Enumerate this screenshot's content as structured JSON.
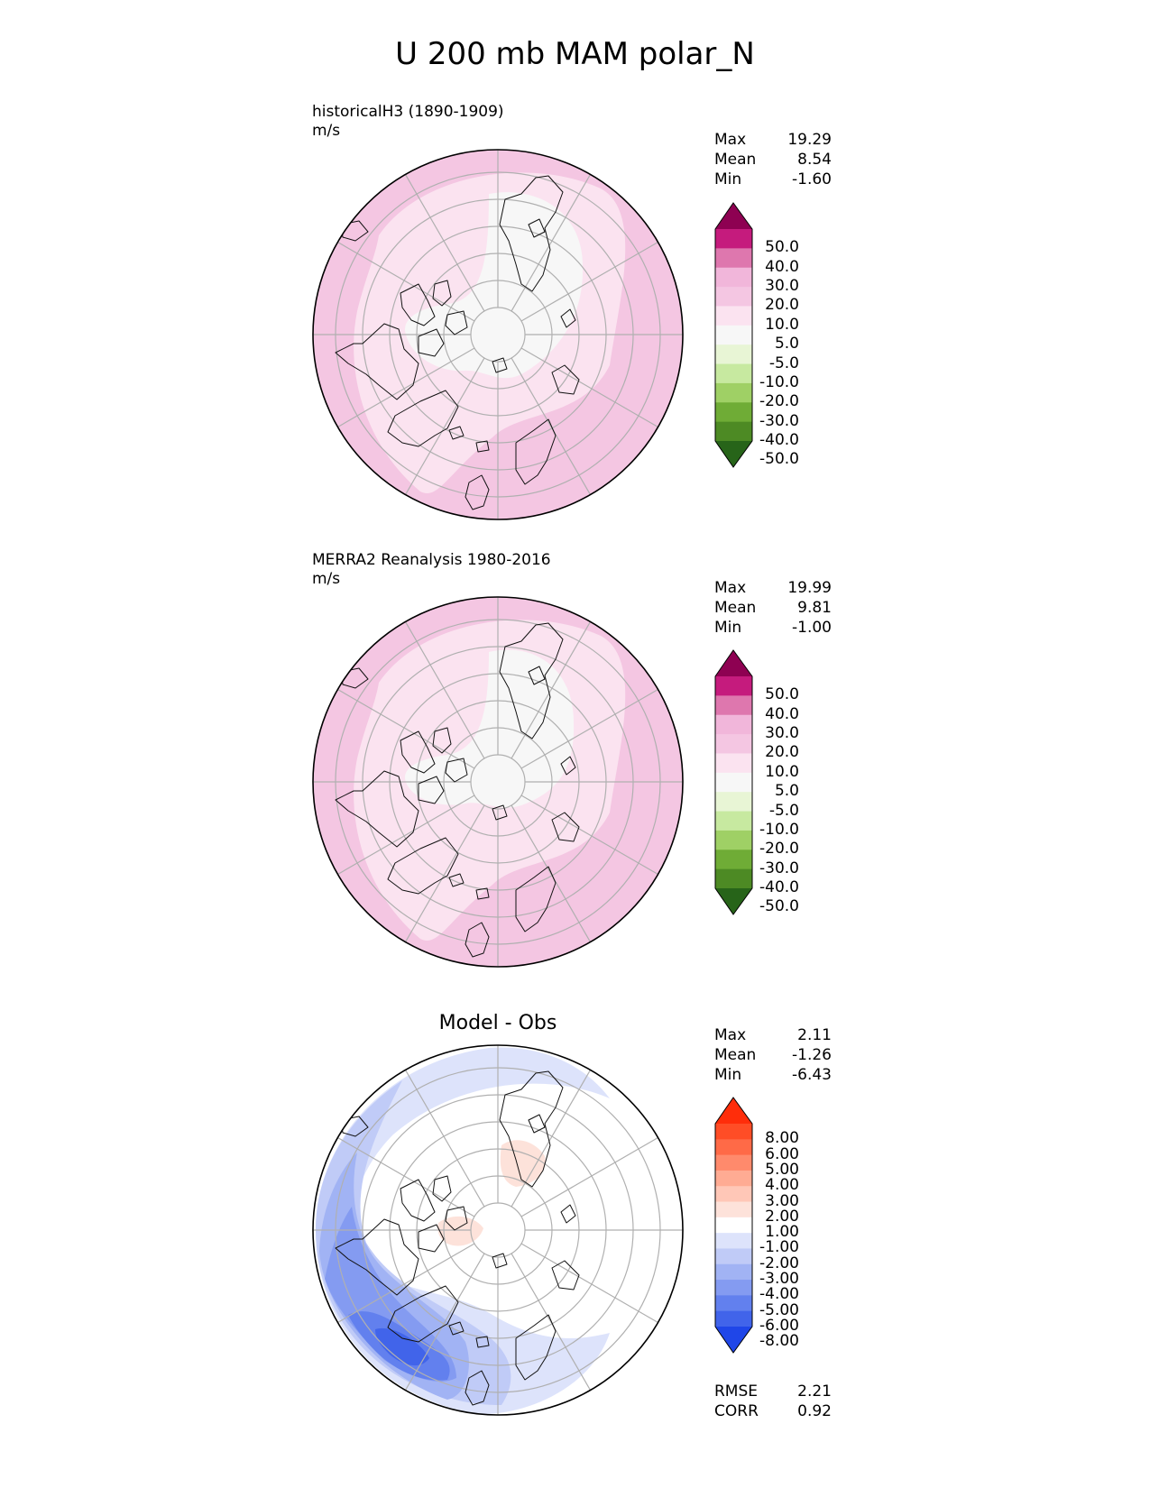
{
  "title": "U 200 mb MAM polar_N",
  "panels": [
    {
      "id": "model",
      "title_line1": "historicalH3 (1890-1909)",
      "title_line2": "m/s",
      "stats": [
        {
          "label": "Max",
          "value": "19.29"
        },
        {
          "label": "Mean",
          "value": "8.54"
        },
        {
          "label": "Min",
          "value": "-1.60"
        }
      ],
      "colorbar_labels": [
        "50.0",
        "40.0",
        "30.0",
        "20.0",
        "10.0",
        "5.0",
        "-5.0",
        "-10.0",
        "-20.0",
        "-30.0",
        "-40.0",
        "-50.0"
      ],
      "colors": [
        "#8e0152",
        "#c51b7d",
        "#de77ae",
        "#f1b6da",
        "#f4c6e2",
        "#fbe3f0",
        "#f7f7f7",
        "#e8f5d5",
        "#c7e9a0",
        "#9fd065",
        "#6fac36",
        "#4d8a24",
        "#276419"
      ]
    },
    {
      "id": "obs",
      "title_line1": "MERRA2 Reanalysis 1980-2016",
      "title_line2": "m/s",
      "stats": [
        {
          "label": "Max",
          "value": "19.99"
        },
        {
          "label": "Mean",
          "value": "9.81"
        },
        {
          "label": "Min",
          "value": "-1.00"
        }
      ],
      "colorbar_labels": [
        "50.0",
        "40.0",
        "30.0",
        "20.0",
        "10.0",
        "5.0",
        "-5.0",
        "-10.0",
        "-20.0",
        "-30.0",
        "-40.0",
        "-50.0"
      ],
      "colors": [
        "#8e0152",
        "#c51b7d",
        "#de77ae",
        "#f1b6da",
        "#f4c6e2",
        "#fbe3f0",
        "#f7f7f7",
        "#e8f5d5",
        "#c7e9a0",
        "#9fd065",
        "#6fac36",
        "#4d8a24",
        "#276419"
      ]
    },
    {
      "id": "diff",
      "title": "Model - Obs",
      "stats": [
        {
          "label": "Max",
          "value": "2.11"
        },
        {
          "label": "Mean",
          "value": "-1.26"
        },
        {
          "label": "Min",
          "value": "-6.43"
        }
      ],
      "metrics": [
        {
          "label": "RMSE",
          "value": "2.21"
        },
        {
          "label": "CORR",
          "value": "0.92"
        }
      ],
      "colorbar_labels": [
        "8.00",
        "6.00",
        "5.00",
        "4.00",
        "3.00",
        "2.00",
        "1.00",
        "-1.00",
        "-2.00",
        "-3.00",
        "-4.00",
        "-5.00",
        "-6.00",
        "-8.00"
      ],
      "colors": [
        "#ff2d0a",
        "#ff4d26",
        "#ff6a47",
        "#ff8a6c",
        "#ffab93",
        "#ffc7b7",
        "#fde2da",
        "#ffffff",
        "#dde3fb",
        "#c0cbf7",
        "#a1b3f4",
        "#849bf1",
        "#6280ee",
        "#4164ea",
        "#1f46e8"
      ]
    }
  ]
}
